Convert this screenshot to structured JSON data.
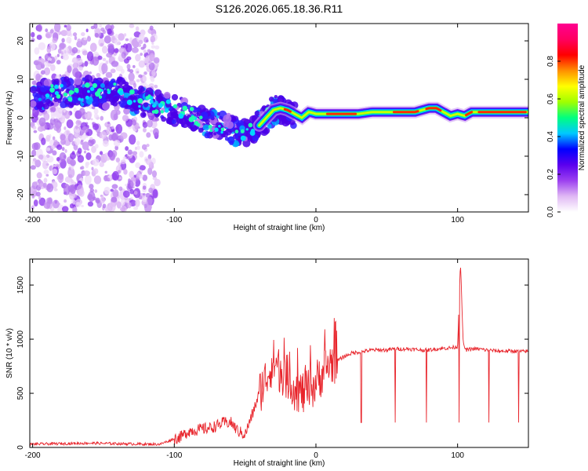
{
  "title": "S126.2026.065.18.36.R11",
  "chart_data": [
    {
      "type": "heatmap",
      "xlabel": "Height of straight line (km)",
      "ylabel": "Frequency (Hz)",
      "xlim": [
        -202,
        150
      ],
      "ylim": [
        -24.5,
        24.5
      ],
      "xticks": [
        -200,
        -100,
        0,
        100
      ],
      "yticks": [
        -20,
        -10,
        0,
        10,
        20
      ],
      "grid": false,
      "colorbar": {
        "label": "Normalized spectral amplitude",
        "range": [
          0.0,
          1.0
        ],
        "ticks": [
          "0.0",
          "0.2",
          "0.4",
          "0.6",
          "0.8"
        ],
        "colors": [
          "#ffffff",
          "#e0b8f4",
          "#9c40f0",
          "#5a00ee",
          "#0000ff",
          "#00c8ff",
          "#00ff80",
          "#a0ff00",
          "#ffff00",
          "#ff9000",
          "#ff0000",
          "#ff0060",
          "#ff0090"
        ]
      },
      "ridge": {
        "x": [
          -200,
          -190,
          -180,
          -170,
          -160,
          -150,
          -140,
          -130,
          -120,
          -110,
          -100,
          -90,
          -80,
          -70,
          -60,
          -55,
          -50,
          -45,
          -40,
          -35,
          -30,
          -25,
          -20,
          -15,
          -10,
          -5,
          0,
          10,
          20,
          30,
          40,
          50,
          60,
          70,
          80,
          85,
          90,
          95,
          100,
          105,
          110,
          120,
          130,
          140,
          150
        ],
        "y": [
          5,
          6,
          7,
          6,
          7,
          6,
          7,
          5,
          4,
          3,
          2,
          1,
          -1,
          -2,
          -3,
          -4,
          -4.5,
          -3,
          -2,
          0,
          2,
          2.5,
          2,
          1,
          0,
          1.5,
          1,
          1,
          1,
          1,
          1.5,
          1.5,
          1.5,
          1.5,
          2.5,
          2.5,
          1.5,
          0.5,
          1,
          0.5,
          1.5,
          1.5,
          1.5,
          1.5,
          1.5
        ]
      }
    },
    {
      "type": "line",
      "xlabel": "Height of straight line (km)",
      "ylabel": "SNR (10 * v/v)",
      "xlim": [
        -202,
        150
      ],
      "ylim": [
        0,
        1740
      ],
      "xticks": [
        -200,
        -100,
        0,
        100
      ],
      "yticks": [
        0,
        500,
        1000,
        1500
      ],
      "grid": false,
      "series": [
        {
          "color": "#e8242b",
          "x": [
            -202,
            -180,
            -160,
            -140,
            -120,
            -110,
            -100,
            -95,
            -90,
            -85,
            -80,
            -75,
            -70,
            -65,
            -60,
            -55,
            -50,
            -45,
            -40,
            -35,
            -30,
            -25,
            -20,
            -15,
            -10,
            -5,
            0,
            5,
            10,
            15,
            20,
            25,
            30,
            35,
            40,
            45,
            50,
            55,
            60,
            65,
            70,
            75,
            80,
            85,
            90,
            95,
            100,
            102,
            104,
            106,
            110,
            115,
            120,
            125,
            130,
            135,
            140,
            145,
            150
          ],
          "y": [
            30,
            35,
            40,
            35,
            30,
            30,
            80,
            100,
            150,
            160,
            170,
            180,
            200,
            230,
            230,
            150,
            120,
            300,
            500,
            650,
            800,
            700,
            650,
            550,
            500,
            520,
            600,
            700,
            780,
            800,
            840,
            870,
            880,
            890,
            900,
            900,
            900,
            910,
            910,
            910,
            905,
            900,
            900,
            910,
            915,
            920,
            930,
            1720,
            950,
            900,
            910,
            910,
            900,
            895,
            890,
            890,
            890,
            885,
            890
          ]
        }
      ],
      "dips_x": [
        32,
        56,
        78,
        101,
        122,
        143
      ]
    }
  ]
}
